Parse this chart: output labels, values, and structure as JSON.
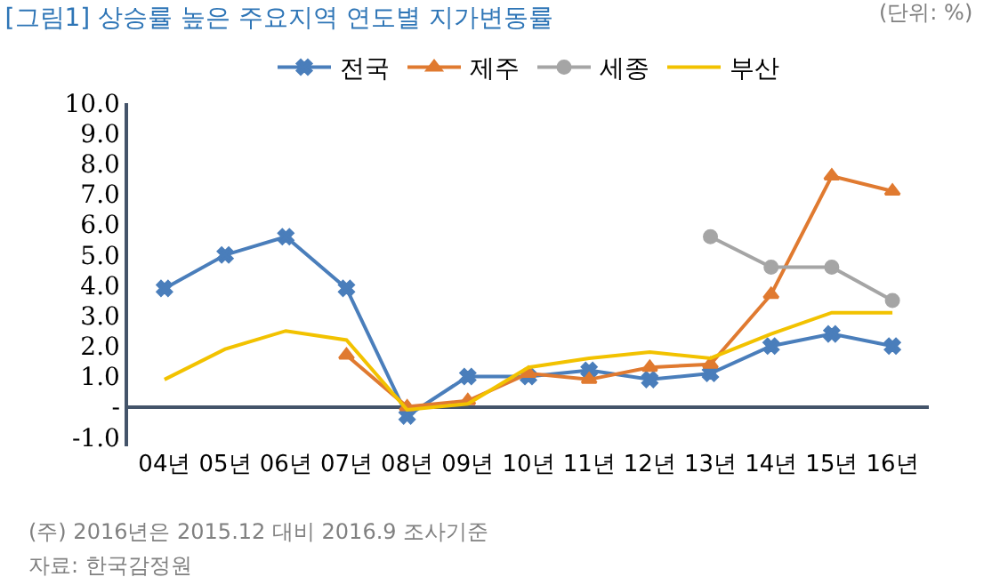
{
  "chart_data": {
    "type": "line",
    "title": "[그림1] 상승률 높은 주요지역 연도별 지가변동률",
    "categories": [
      "04년",
      "05년",
      "06년",
      "07년",
      "08년",
      "09년",
      "10년",
      "11년",
      "12년",
      "13년",
      "14년",
      "15년",
      "16년"
    ],
    "series": [
      {
        "name": "전국",
        "color": "#4a7ebb",
        "marker": "cross",
        "values": [
          3.9,
          5.0,
          5.6,
          3.9,
          -0.3,
          1.0,
          1.0,
          1.2,
          0.9,
          1.1,
          2.0,
          2.4,
          2.0
        ]
      },
      {
        "name": "제주",
        "color": "#e07a30",
        "marker": "triangle",
        "values": [
          null,
          null,
          null,
          1.7,
          0.0,
          0.2,
          1.1,
          0.9,
          1.3,
          1.4,
          3.7,
          7.6,
          7.1
        ]
      },
      {
        "name": "세종",
        "color": "#a5a5a5",
        "marker": "circle",
        "values": [
          null,
          null,
          null,
          null,
          null,
          null,
          null,
          null,
          null,
          5.6,
          4.6,
          4.6,
          3.5
        ]
      },
      {
        "name": "부산",
        "color": "#f2c200",
        "marker": "none",
        "values": [
          0.9,
          1.9,
          2.5,
          2.2,
          -0.1,
          0.1,
          1.3,
          1.6,
          1.8,
          1.6,
          2.4,
          3.1,
          3.1
        ]
      }
    ],
    "ylim": [
      -1.3,
      10
    ],
    "yticks": [
      {
        "value": -1,
        "label": "-1.0"
      },
      {
        "value": 0,
        "label": "-"
      },
      {
        "value": 1,
        "label": "1.0"
      },
      {
        "value": 2,
        "label": "2.0"
      },
      {
        "value": 3,
        "label": "3.0"
      },
      {
        "value": 4,
        "label": "4.0"
      },
      {
        "value": 5,
        "label": "5.0"
      },
      {
        "value": 6,
        "label": "6.0"
      },
      {
        "value": 7,
        "label": "7.0"
      },
      {
        "value": 8,
        "label": "8.0"
      },
      {
        "value": 9,
        "label": "9.0"
      },
      {
        "value": 10,
        "label": "10.0"
      }
    ],
    "legend": "top",
    "annotations": [
      "(단위: %)",
      "(주) 2016년은 2015.12 대비 2016.9 조사기준",
      "자료: 한국감정원"
    ]
  }
}
